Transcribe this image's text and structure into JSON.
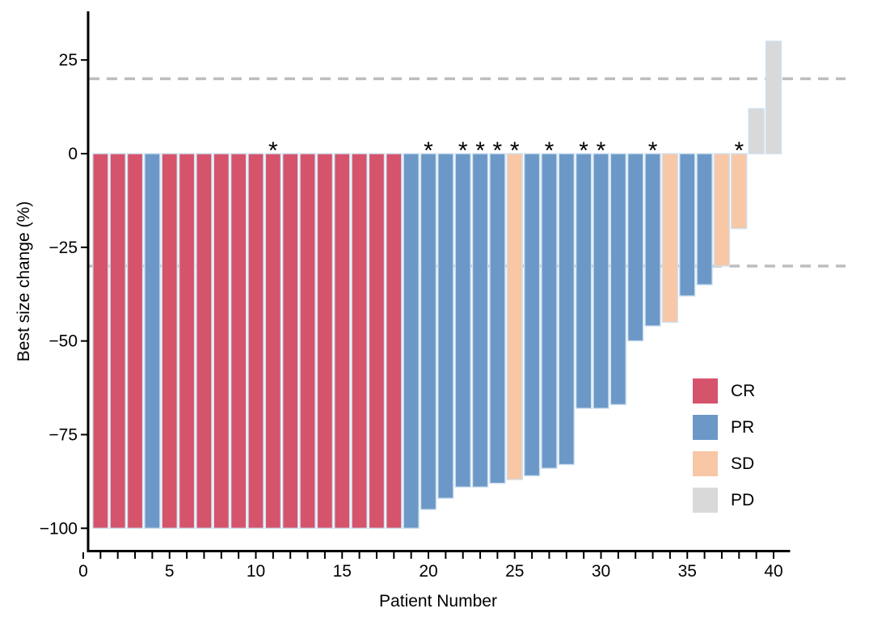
{
  "figure": {
    "background": "#FFFFFF"
  },
  "chart_data": {
    "type": "bar",
    "subtype": "waterfall",
    "title": "",
    "xlabel": "Patient Number",
    "ylabel": "Best size change (%)",
    "annotation_symbol": "*",
    "x_axis": {
      "min": 0,
      "max": 40,
      "major_ticks": [
        0,
        5,
        10,
        15,
        20,
        25,
        30,
        35,
        40
      ],
      "minor_tick_step": 1
    },
    "y_axis": {
      "min": -106,
      "max": 38,
      "ticks": [
        25,
        0,
        -25,
        -50,
        -75,
        -100
      ]
    },
    "reference_lines": {
      "values": [
        20,
        -30
      ],
      "color": "#BDBDBD",
      "style": "dashed"
    },
    "legend": {
      "position": "right-middle",
      "entries": [
        {
          "label": "CR",
          "color": "#D5536B"
        },
        {
          "label": "PR",
          "color": "#6C98C7"
        },
        {
          "label": "SD",
          "color": "#F8C7A6"
        },
        {
          "label": "PD",
          "color": "#D9D9D9"
        }
      ]
    },
    "series": [
      {
        "patient": 1,
        "value": -100,
        "response": "CR",
        "star": false
      },
      {
        "patient": 2,
        "value": -100,
        "response": "CR",
        "star": false
      },
      {
        "patient": 3,
        "value": -100,
        "response": "CR",
        "star": false
      },
      {
        "patient": 4,
        "value": -100,
        "response": "PR",
        "star": false
      },
      {
        "patient": 5,
        "value": -100,
        "response": "CR",
        "star": false
      },
      {
        "patient": 6,
        "value": -100,
        "response": "CR",
        "star": false
      },
      {
        "patient": 7,
        "value": -100,
        "response": "CR",
        "star": false
      },
      {
        "patient": 8,
        "value": -100,
        "response": "CR",
        "star": false
      },
      {
        "patient": 9,
        "value": -100,
        "response": "CR",
        "star": false
      },
      {
        "patient": 10,
        "value": -100,
        "response": "CR",
        "star": false
      },
      {
        "patient": 11,
        "value": -100,
        "response": "CR",
        "star": true
      },
      {
        "patient": 12,
        "value": -100,
        "response": "CR",
        "star": false
      },
      {
        "patient": 13,
        "value": -100,
        "response": "CR",
        "star": false
      },
      {
        "patient": 14,
        "value": -100,
        "response": "CR",
        "star": false
      },
      {
        "patient": 15,
        "value": -100,
        "response": "CR",
        "star": false
      },
      {
        "patient": 16,
        "value": -100,
        "response": "CR",
        "star": false
      },
      {
        "patient": 17,
        "value": -100,
        "response": "CR",
        "star": false
      },
      {
        "patient": 18,
        "value": -100,
        "response": "CR",
        "star": false
      },
      {
        "patient": 19,
        "value": -100,
        "response": "PR",
        "star": false
      },
      {
        "patient": 20,
        "value": -95,
        "response": "PR",
        "star": true
      },
      {
        "patient": 21,
        "value": -92,
        "response": "PR",
        "star": false
      },
      {
        "patient": 22,
        "value": -89,
        "response": "PR",
        "star": true
      },
      {
        "patient": 23,
        "value": -89,
        "response": "PR",
        "star": true
      },
      {
        "patient": 24,
        "value": -88,
        "response": "PR",
        "star": true
      },
      {
        "patient": 25,
        "value": -87,
        "response": "SD",
        "star": true
      },
      {
        "patient": 26,
        "value": -86,
        "response": "PR",
        "star": false
      },
      {
        "patient": 27,
        "value": -84,
        "response": "PR",
        "star": true
      },
      {
        "patient": 28,
        "value": -83,
        "response": "PR",
        "star": false
      },
      {
        "patient": 29,
        "value": -68,
        "response": "PR",
        "star": true
      },
      {
        "patient": 30,
        "value": -68,
        "response": "PR",
        "star": true
      },
      {
        "patient": 31,
        "value": -67,
        "response": "PR",
        "star": false
      },
      {
        "patient": 32,
        "value": -50,
        "response": "PR",
        "star": false
      },
      {
        "patient": 33,
        "value": -46,
        "response": "PR",
        "star": true
      },
      {
        "patient": 34,
        "value": -45,
        "response": "SD",
        "star": false
      },
      {
        "patient": 35,
        "value": -38,
        "response": "PR",
        "star": false
      },
      {
        "patient": 36,
        "value": -35,
        "response": "PR",
        "star": false
      },
      {
        "patient": 37,
        "value": -30,
        "response": "SD",
        "star": false
      },
      {
        "patient": 38,
        "value": -20,
        "response": "SD",
        "star": true
      },
      {
        "patient": 39,
        "value": 12,
        "response": "PD",
        "star": false
      },
      {
        "patient": 40,
        "value": 30,
        "response": "PD",
        "star": false
      }
    ],
    "style": {
      "bar_border_color": "#CFE1F0",
      "axis_color": "#000000",
      "text_color": "#000000"
    }
  }
}
